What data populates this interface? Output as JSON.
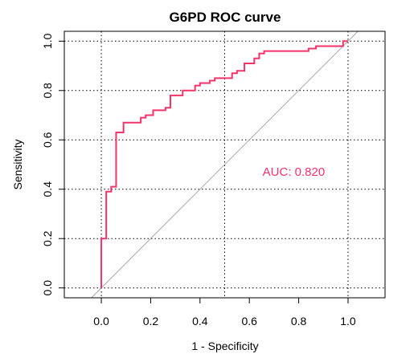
{
  "chart_data": {
    "type": "line",
    "title": "G6PD ROC curve",
    "xlabel": "1 - Specificity",
    "ylabel": "Sensitivity",
    "xlim": [
      -0.15,
      1.15
    ],
    "ylim": [
      -0.04,
      1.04
    ],
    "x_ticks": [
      "0.0",
      "0.2",
      "0.4",
      "0.6",
      "0.8",
      "1.0"
    ],
    "y_ticks": [
      "0.0",
      "0.2",
      "0.4",
      "0.6",
      "0.8",
      "1.0"
    ],
    "grid": true,
    "grid_x": [
      0,
      0.5,
      1
    ],
    "grid_y": [
      0,
      0.2,
      0.4,
      0.6,
      0.8,
      1.0
    ],
    "curve_color": "#F5336B",
    "diagonal_color": "#aaaaaa",
    "annotation": "AUC: 0.820",
    "annotation_pos": [
      0.78,
      0.47
    ],
    "series": [
      {
        "x": [
          0.0,
          0.0,
          0.0,
          0.02,
          0.02,
          0.04,
          0.04,
          0.06,
          0.06,
          0.09,
          0.09,
          0.16,
          0.16,
          0.18,
          0.18,
          0.21,
          0.21,
          0.26,
          0.26,
          0.28,
          0.28,
          0.33,
          0.33,
          0.38,
          0.38,
          0.4,
          0.4,
          0.44,
          0.44,
          0.46,
          0.46,
          0.53,
          0.53,
          0.55,
          0.55,
          0.58,
          0.58,
          0.62,
          0.62,
          0.64,
          0.64,
          0.66,
          0.66,
          0.84,
          0.84,
          0.87,
          0.87,
          0.98,
          0.98,
          1.0
        ],
        "y": [
          0.0,
          0.0,
          0.2,
          0.2,
          0.39,
          0.39,
          0.41,
          0.41,
          0.63,
          0.63,
          0.67,
          0.67,
          0.69,
          0.69,
          0.7,
          0.7,
          0.72,
          0.72,
          0.73,
          0.73,
          0.78,
          0.78,
          0.8,
          0.8,
          0.82,
          0.82,
          0.83,
          0.83,
          0.84,
          0.84,
          0.85,
          0.85,
          0.87,
          0.87,
          0.88,
          0.88,
          0.91,
          0.91,
          0.93,
          0.93,
          0.95,
          0.95,
          0.96,
          0.96,
          0.97,
          0.97,
          0.98,
          0.98,
          1.0,
          1.0
        ]
      }
    ]
  }
}
